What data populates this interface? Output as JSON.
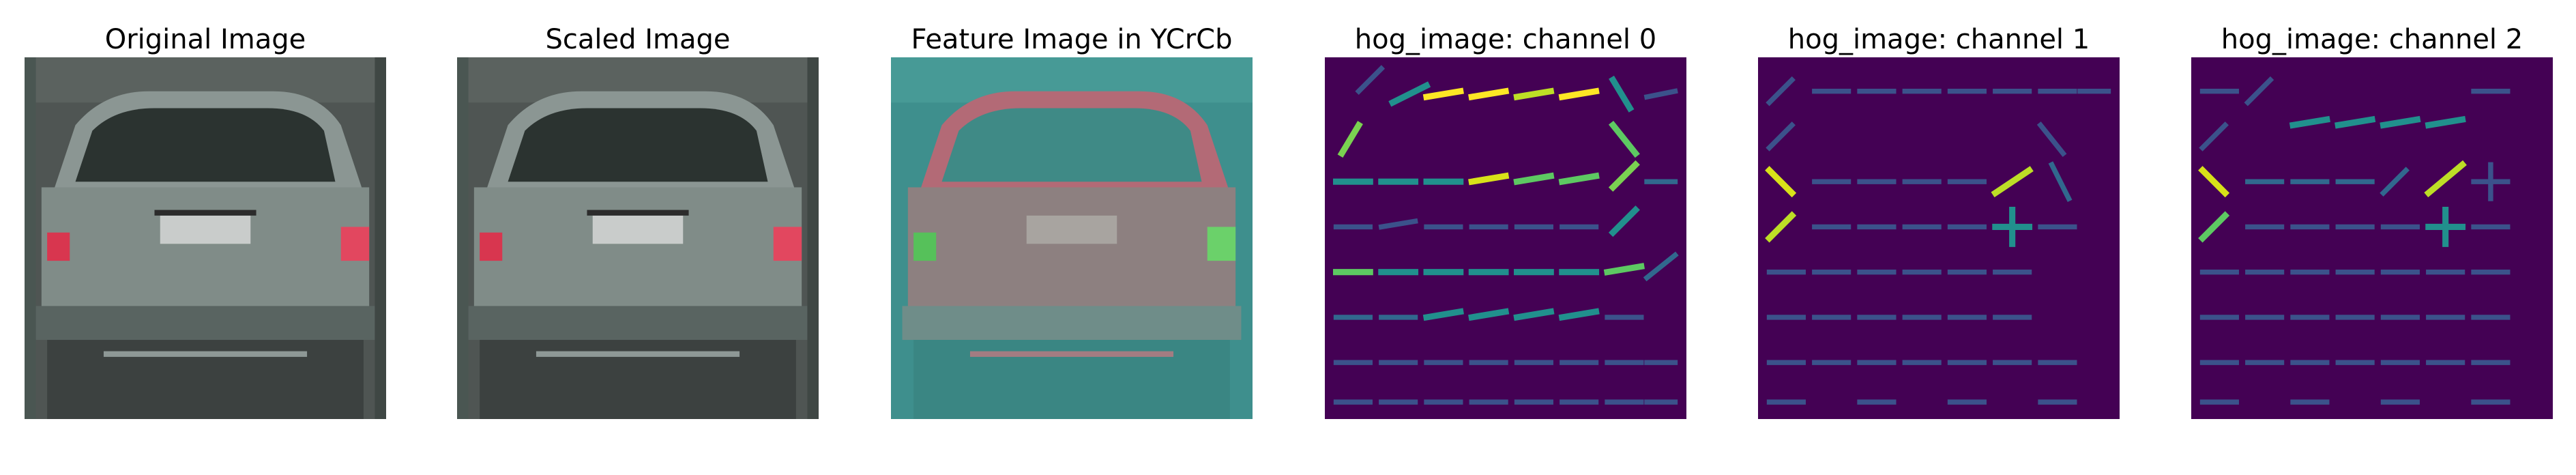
{
  "panels": [
    {
      "title": "Original Image"
    },
    {
      "title": "Scaled Image"
    },
    {
      "title": "Feature Image in YCrCb"
    },
    {
      "title": "hog_image: channel 0"
    },
    {
      "title": "hog_image: channel 1"
    },
    {
      "title": "hog_image: channel 2"
    }
  ],
  "colors": {
    "background": "#ffffff",
    "hog_background": "#440154",
    "hog_mid": "#3b528b",
    "hog_teal": "#21908d",
    "hog_green": "#5dc962",
    "hog_yellow": "#fde725",
    "car_body": "#7f8a86",
    "taillight": "#d8364f",
    "ycrcb_base": "#3e8f8d",
    "ycrcb_body": "#b36a76",
    "ycrcb_light": "#56c15a"
  }
}
